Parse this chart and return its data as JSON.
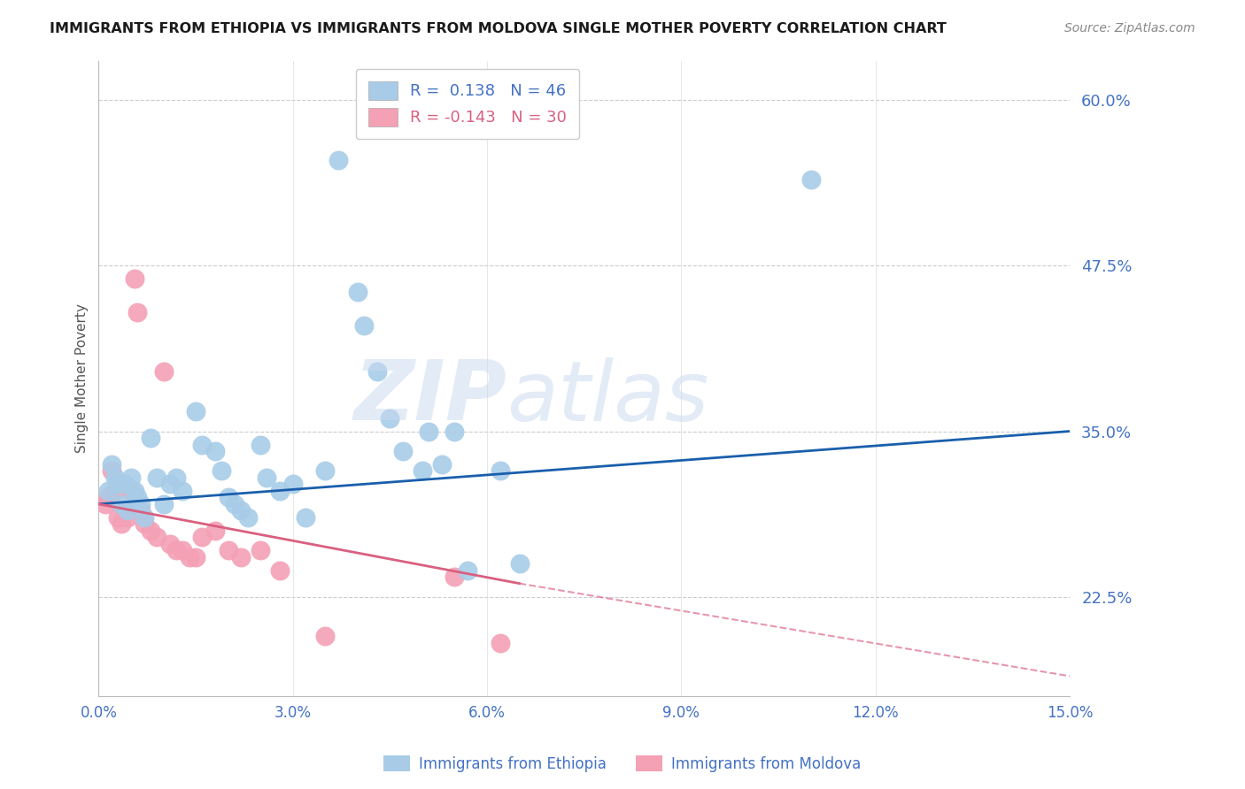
{
  "title": "IMMIGRANTS FROM ETHIOPIA VS IMMIGRANTS FROM MOLDOVA SINGLE MOTHER POVERTY CORRELATION CHART",
  "source": "Source: ZipAtlas.com",
  "ylabel": "Single Mother Poverty",
  "xlim": [
    0.0,
    15.0
  ],
  "ylim": [
    15.0,
    63.0
  ],
  "yticks": [
    22.5,
    35.0,
    47.5,
    60.0
  ],
  "xticks": [
    0.0,
    3.0,
    6.0,
    9.0,
    12.0,
    15.0
  ],
  "ethiopia_R": "0.138",
  "ethiopia_N": "46",
  "moldova_R": "-0.143",
  "moldova_N": "30",
  "blue_color": "#a8cce8",
  "pink_color": "#f4a0b5",
  "line_blue": "#1a5fac",
  "line_pink": "#d96080",
  "eth_line_x0": 0.0,
  "eth_line_y0": 29.5,
  "eth_line_x1": 15.0,
  "eth_line_y1": 35.0,
  "mol_line_x0": 0.0,
  "mol_line_y0": 29.5,
  "mol_line_x1": 6.5,
  "mol_line_y1": 23.5,
  "mol_dash_x0": 6.5,
  "mol_dash_y0": 23.5,
  "mol_dash_x1": 15.0,
  "mol_dash_y1": 16.5,
  "ethiopia_scatter": [
    [
      0.15,
      30.5
    ],
    [
      0.2,
      32.5
    ],
    [
      0.25,
      31.5
    ],
    [
      0.3,
      31.0
    ],
    [
      0.35,
      29.5
    ],
    [
      0.4,
      31.0
    ],
    [
      0.45,
      29.0
    ],
    [
      0.5,
      31.5
    ],
    [
      0.55,
      30.5
    ],
    [
      0.6,
      30.0
    ],
    [
      0.65,
      29.5
    ],
    [
      0.7,
      28.5
    ],
    [
      0.8,
      34.5
    ],
    [
      0.9,
      31.5
    ],
    [
      1.0,
      29.5
    ],
    [
      1.1,
      31.0
    ],
    [
      1.2,
      31.5
    ],
    [
      1.3,
      30.5
    ],
    [
      1.5,
      36.5
    ],
    [
      1.6,
      34.0
    ],
    [
      1.8,
      33.5
    ],
    [
      1.9,
      32.0
    ],
    [
      2.0,
      30.0
    ],
    [
      2.1,
      29.5
    ],
    [
      2.2,
      29.0
    ],
    [
      2.3,
      28.5
    ],
    [
      2.5,
      34.0
    ],
    [
      2.6,
      31.5
    ],
    [
      2.8,
      30.5
    ],
    [
      3.0,
      31.0
    ],
    [
      3.2,
      28.5
    ],
    [
      3.5,
      32.0
    ],
    [
      3.7,
      55.5
    ],
    [
      4.0,
      45.5
    ],
    [
      4.1,
      43.0
    ],
    [
      4.3,
      39.5
    ],
    [
      4.5,
      36.0
    ],
    [
      4.7,
      33.5
    ],
    [
      5.0,
      32.0
    ],
    [
      5.1,
      35.0
    ],
    [
      5.3,
      32.5
    ],
    [
      5.5,
      35.0
    ],
    [
      5.7,
      24.5
    ],
    [
      6.2,
      32.0
    ],
    [
      6.5,
      25.0
    ],
    [
      11.0,
      54.0
    ]
  ],
  "moldova_scatter": [
    [
      0.1,
      29.5
    ],
    [
      0.15,
      30.0
    ],
    [
      0.2,
      32.0
    ],
    [
      0.25,
      30.5
    ],
    [
      0.3,
      28.5
    ],
    [
      0.35,
      28.0
    ],
    [
      0.4,
      29.0
    ],
    [
      0.45,
      28.5
    ],
    [
      0.5,
      30.5
    ],
    [
      0.55,
      46.5
    ],
    [
      0.6,
      44.0
    ],
    [
      0.65,
      29.0
    ],
    [
      0.7,
      28.0
    ],
    [
      0.8,
      27.5
    ],
    [
      0.9,
      27.0
    ],
    [
      1.0,
      39.5
    ],
    [
      1.1,
      26.5
    ],
    [
      1.2,
      26.0
    ],
    [
      1.3,
      26.0
    ],
    [
      1.4,
      25.5
    ],
    [
      1.5,
      25.5
    ],
    [
      1.6,
      27.0
    ],
    [
      1.8,
      27.5
    ],
    [
      2.0,
      26.0
    ],
    [
      2.2,
      25.5
    ],
    [
      2.5,
      26.0
    ],
    [
      2.8,
      24.5
    ],
    [
      3.5,
      19.5
    ],
    [
      5.5,
      24.0
    ],
    [
      6.2,
      19.0
    ]
  ]
}
